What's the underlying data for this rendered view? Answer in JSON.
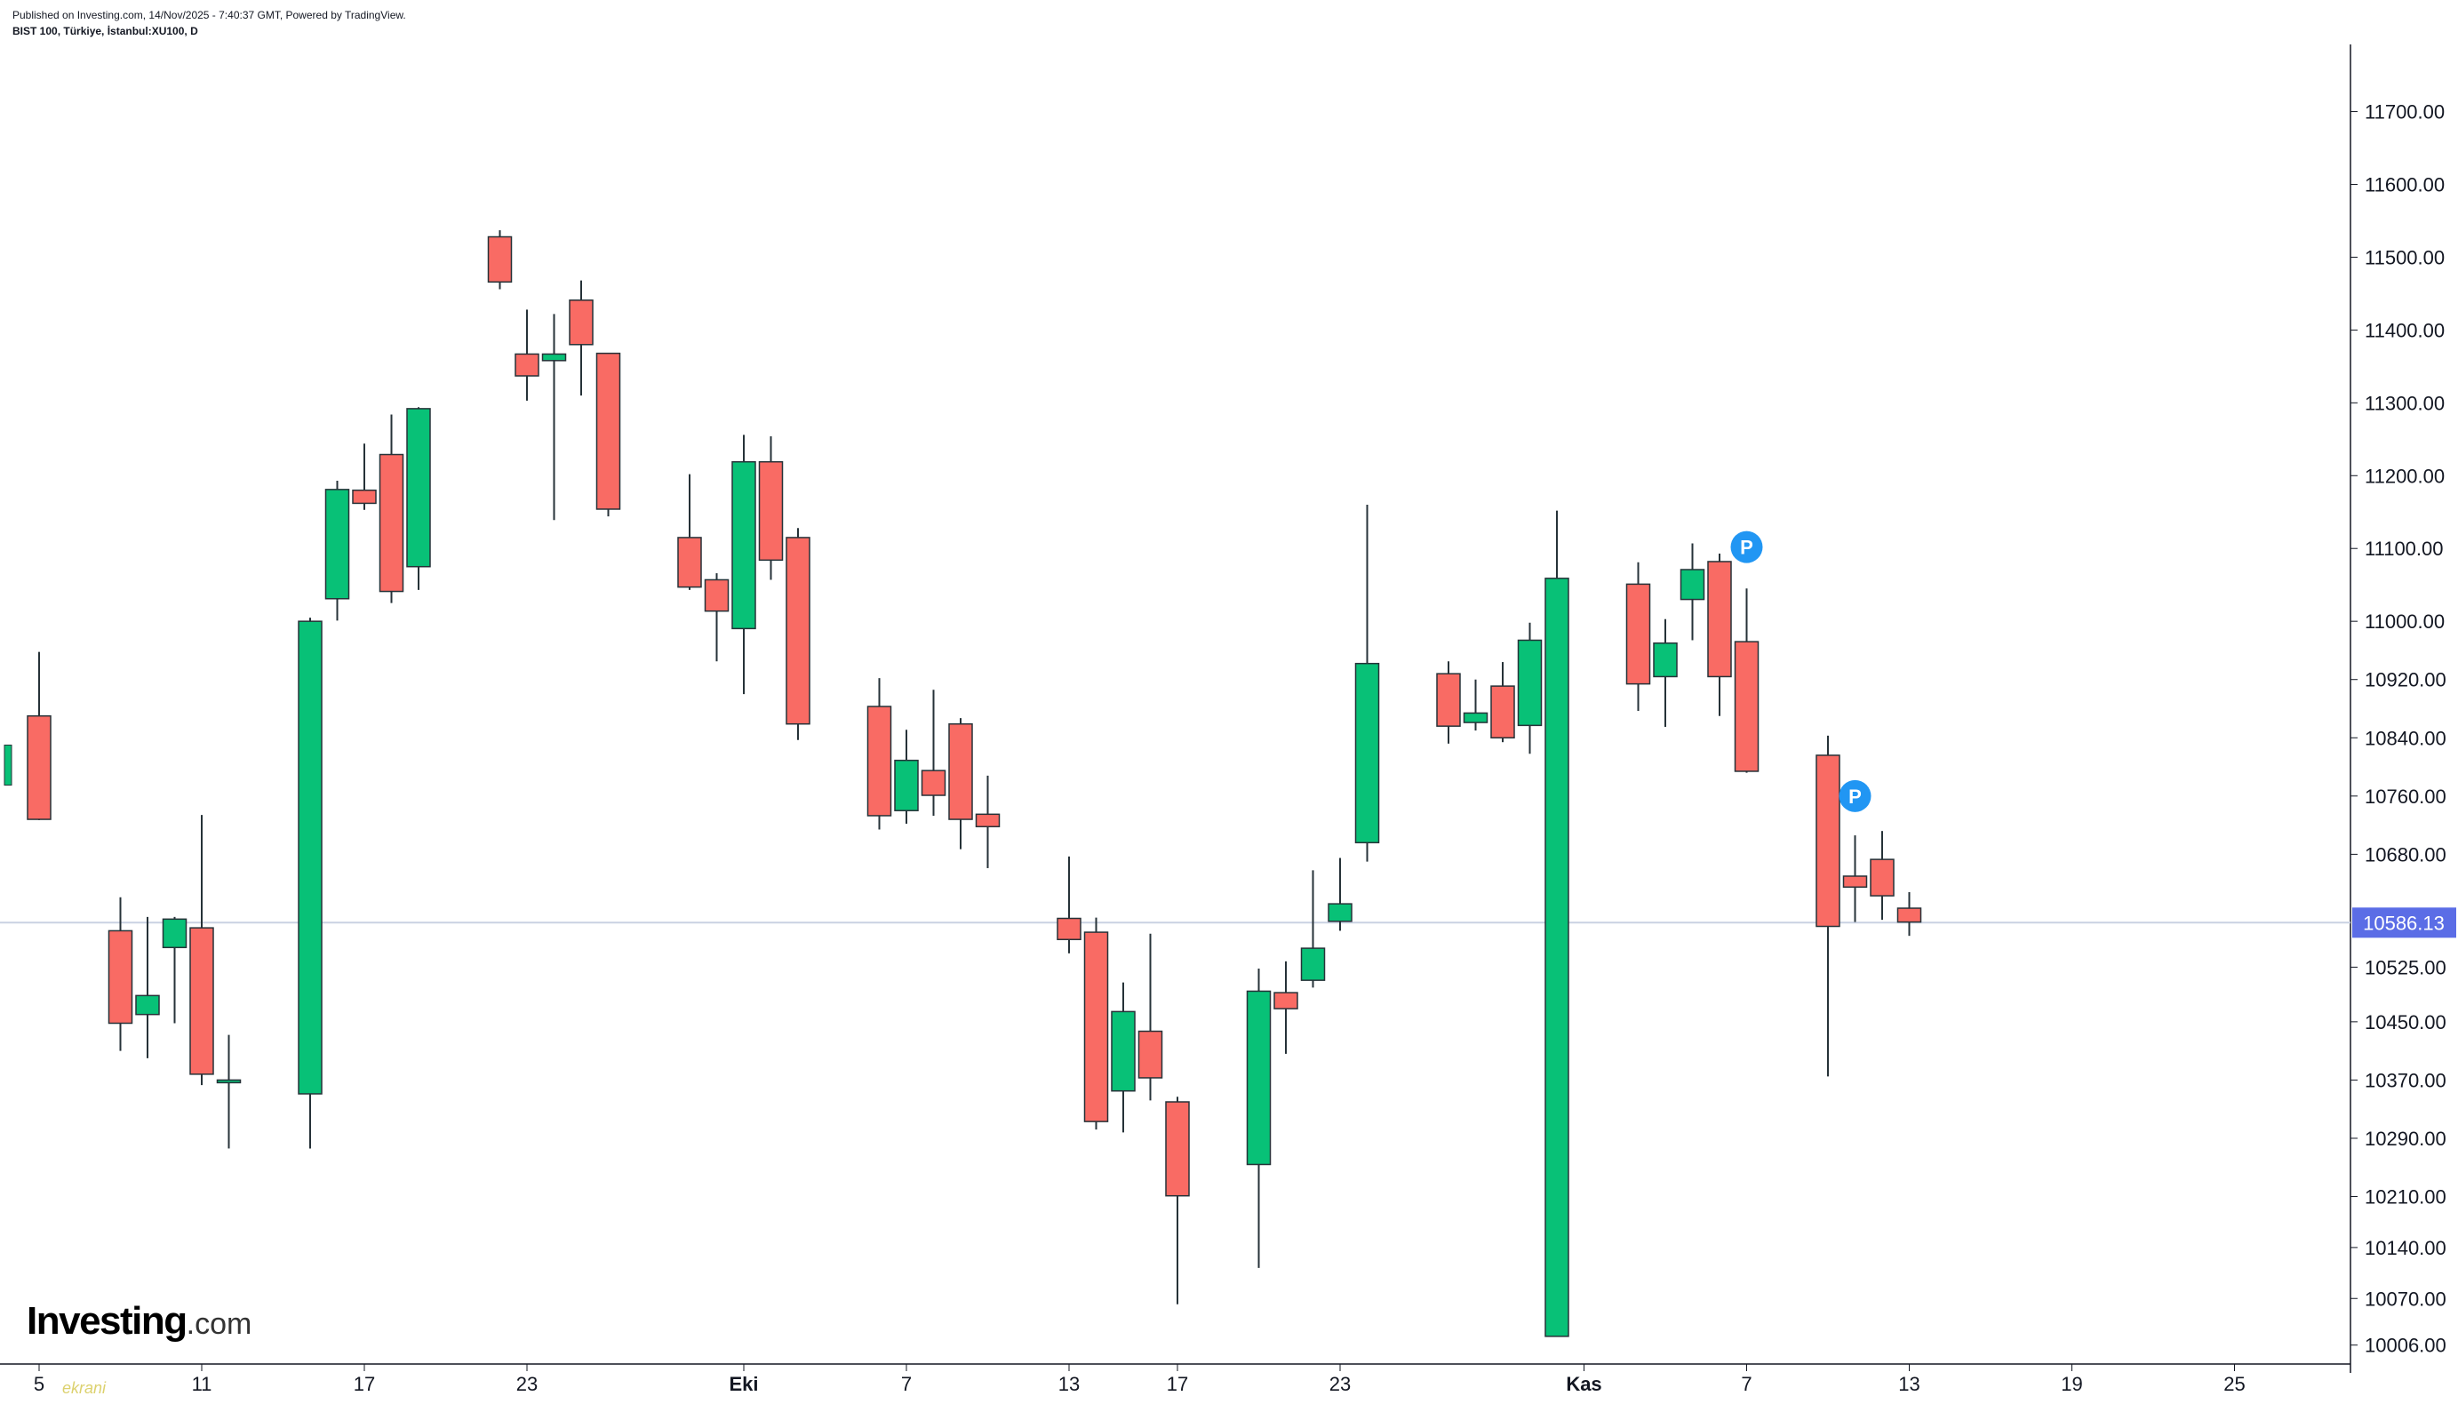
{
  "header": {
    "published": "Published on Investing.com, 14/Nov/2025 - 7:40:37 GMT, Powered by TradingView.",
    "symbol": "BIST 100, Türkiye, İstanbul:XU100, D"
  },
  "logo": {
    "brand": "Investing",
    "suffix": ".com"
  },
  "watermark": "ekrani",
  "colors": {
    "up": "#08c177",
    "down": "#f96b64",
    "wick": "#263238",
    "axis": "#131722",
    "price_line": "#c9d1e2",
    "price_badge": "#5b6de6",
    "marker": "#2196f3"
  },
  "chart_data": {
    "type": "candlestick",
    "ylim": [
      9980,
      11780
    ],
    "yticks": [
      11700,
      11600,
      11500,
      11400,
      11300,
      11200,
      11100,
      11000,
      10920,
      10840,
      10760,
      10680,
      10525,
      10450,
      10370,
      10290,
      10210,
      10140,
      10070,
      10006
    ],
    "ytick_labels": [
      "11700.00",
      "11600.00",
      "11500.00",
      "11400.00",
      "11300.00",
      "11200.00",
      "11100.00",
      "11000.00",
      "10920.00",
      "10840.00",
      "10760.00",
      "10680.00",
      "10525.00",
      "10450.00",
      "10370.00",
      "10290.00",
      "10210.00",
      "10140.00",
      "10070.00",
      "10006.00"
    ],
    "xticks": [
      {
        "label": "5",
        "bold": false,
        "at": "2025-09-05"
      },
      {
        "label": "11",
        "bold": false,
        "at": "2025-09-11"
      },
      {
        "label": "17",
        "bold": false,
        "at": "2025-09-17"
      },
      {
        "label": "23",
        "bold": false,
        "at": "2025-09-23"
      },
      {
        "label": "Eki",
        "bold": true,
        "at": "2025-10-01"
      },
      {
        "label": "7",
        "bold": false,
        "at": "2025-10-07"
      },
      {
        "label": "13",
        "bold": false,
        "at": "2025-10-13"
      },
      {
        "label": "17",
        "bold": false,
        "at": "2025-10-17"
      },
      {
        "label": "23",
        "bold": false,
        "at": "2025-10-23"
      },
      {
        "label": "Kas",
        "bold": true,
        "at": "2025-11-01"
      },
      {
        "label": "7",
        "bold": false,
        "at": "2025-11-07"
      },
      {
        "label": "13",
        "bold": false,
        "at": "2025-11-13"
      },
      {
        "label": "19",
        "bold": false,
        "at": "2025-11-19"
      },
      {
        "label": "25",
        "bold": false,
        "at": "2025-11-25"
      }
    ],
    "candles": [
      {
        "date": "2025-09-05",
        "open": 10870,
        "high": 10958,
        "low": 10727,
        "close": 10728
      },
      {
        "date": "2025-09-08",
        "open": 10575,
        "high": 10621,
        "low": 10410,
        "close": 10448
      },
      {
        "date": "2025-09-09",
        "open": 10460,
        "high": 10594,
        "low": 10400,
        "close": 10486
      },
      {
        "date": "2025-09-10",
        "open": 10552,
        "high": 10594,
        "low": 10448,
        "close": 10591
      },
      {
        "date": "2025-09-11",
        "open": 10579,
        "high": 10734,
        "low": 10363,
        "close": 10378
      },
      {
        "date": "2025-09-12",
        "open": 10370,
        "high": 10432,
        "low": 10276,
        "close": 10370
      },
      {
        "date": "2025-09-15",
        "open": 10351,
        "high": 11005,
        "low": 10276,
        "close": 11000
      },
      {
        "date": "2025-09-16",
        "open": 11031,
        "high": 11193,
        "low": 11001,
        "close": 11181
      },
      {
        "date": "2025-09-17",
        "open": 11180,
        "high": 11244,
        "low": 11153,
        "close": 11162
      },
      {
        "date": "2025-09-18",
        "open": 11229,
        "high": 11284,
        "low": 11025,
        "close": 11041
      },
      {
        "date": "2025-09-19",
        "open": 11075,
        "high": 11294,
        "low": 11043,
        "close": 11292
      },
      {
        "date": "2025-09-22",
        "open": 11528,
        "high": 11537,
        "low": 11456,
        "close": 11466
      },
      {
        "date": "2025-09-23",
        "open": 11367,
        "high": 11428,
        "low": 11303,
        "close": 11337
      },
      {
        "date": "2025-09-24",
        "open": 11358,
        "high": 11422,
        "low": 11139,
        "close": 11367
      },
      {
        "date": "2025-09-25",
        "open": 11441,
        "high": 11468,
        "low": 11310,
        "close": 11380
      },
      {
        "date": "2025-09-26",
        "open": 11368,
        "high": 11368,
        "low": 11144,
        "close": 11154
      },
      {
        "date": "2025-09-29",
        "open": 11115,
        "high": 11202,
        "low": 11043,
        "close": 11047
      },
      {
        "date": "2025-09-30",
        "open": 11057,
        "high": 11066,
        "low": 10945,
        "close": 11014
      },
      {
        "date": "2025-10-01",
        "open": 10990,
        "high": 11256,
        "low": 10900,
        "close": 11219
      },
      {
        "date": "2025-10-02",
        "open": 11219,
        "high": 11254,
        "low": 11057,
        "close": 11084
      },
      {
        "date": "2025-10-03",
        "open": 11115,
        "high": 11128,
        "low": 10837,
        "close": 10859
      },
      {
        "date": "2025-10-06",
        "open": 10883,
        "high": 10922,
        "low": 10714,
        "close": 10733
      },
      {
        "date": "2025-10-07",
        "open": 10740,
        "high": 10851,
        "low": 10722,
        "close": 10809
      },
      {
        "date": "2025-10-08",
        "open": 10795,
        "high": 10906,
        "low": 10733,
        "close": 10761
      },
      {
        "date": "2025-10-09",
        "open": 10859,
        "high": 10867,
        "low": 10687,
        "close": 10728
      },
      {
        "date": "2025-10-10",
        "open": 10735,
        "high": 10788,
        "low": 10661,
        "close": 10718
      },
      {
        "date": "2025-10-13",
        "open": 10592,
        "high": 10677,
        "low": 10544,
        "close": 10563
      },
      {
        "date": "2025-10-14",
        "open": 10573,
        "high": 10593,
        "low": 10302,
        "close": 10313
      },
      {
        "date": "2025-10-15",
        "open": 10355,
        "high": 10504,
        "low": 10298,
        "close": 10464
      },
      {
        "date": "2025-10-16",
        "open": 10437,
        "high": 10571,
        "low": 10342,
        "close": 10373
      },
      {
        "date": "2025-10-17",
        "open": 10340,
        "high": 10347,
        "low": 10062,
        "close": 10211
      },
      {
        "date": "2025-10-20",
        "open": 10254,
        "high": 10523,
        "low": 10112,
        "close": 10492
      },
      {
        "date": "2025-10-21",
        "open": 10490,
        "high": 10533,
        "low": 10406,
        "close": 10468
      },
      {
        "date": "2025-10-22",
        "open": 10507,
        "high": 10658,
        "low": 10497,
        "close": 10551
      },
      {
        "date": "2025-10-23",
        "open": 10588,
        "high": 10675,
        "low": 10575,
        "close": 10612
      },
      {
        "date": "2025-10-24",
        "open": 10696,
        "high": 11160,
        "low": 10670,
        "close": 10942
      },
      {
        "date": "2025-10-27",
        "open": 10928,
        "high": 10945,
        "low": 10832,
        "close": 10856
      },
      {
        "date": "2025-10-28",
        "open": 10861,
        "high": 10920,
        "low": 10850,
        "close": 10874
      },
      {
        "date": "2025-10-29",
        "open": 10911,
        "high": 10944,
        "low": 10834,
        "close": 10840
      },
      {
        "date": "2025-10-30",
        "open": 10857,
        "high": 10998,
        "low": 10818,
        "close": 10974
      },
      {
        "date": "2025-10-31",
        "open": 10018,
        "high": 11152,
        "low": 10018,
        "close": 11059
      },
      {
        "date": "2025-11-03",
        "open": 11051,
        "high": 11081,
        "low": 10877,
        "close": 10914
      },
      {
        "date": "2025-11-04",
        "open": 10924,
        "high": 11003,
        "low": 10855,
        "close": 10970
      },
      {
        "date": "2025-11-05",
        "open": 11030,
        "high": 11107,
        "low": 10974,
        "close": 11071
      },
      {
        "date": "2025-11-06",
        "open": 11082,
        "high": 11093,
        "low": 10870,
        "close": 10924
      },
      {
        "date": "2025-11-07",
        "open": 10972,
        "high": 11045,
        "low": 10792,
        "close": 10794
      },
      {
        "date": "2025-11-10",
        "open": 10816,
        "high": 10843,
        "low": 10375,
        "close": 10581
      },
      {
        "date": "2025-11-11",
        "open": 10650,
        "high": 10706,
        "low": 10587,
        "close": 10635
      },
      {
        "date": "2025-11-12",
        "open": 10673,
        "high": 10712,
        "low": 10590,
        "close": 10623
      },
      {
        "date": "2025-11-13",
        "open": 10606,
        "high": 10628,
        "low": 10568,
        "close": 10587
      }
    ],
    "last_price": 10586.13,
    "last_price_label": "10586.13",
    "markers": [
      {
        "label": "P",
        "date": "2025-11-07",
        "value": 11102
      },
      {
        "label": "P",
        "date": "2025-11-11",
        "value": 10760
      }
    ],
    "left_partial_candle": {
      "open": 10775,
      "high": 10836,
      "low": 10766,
      "close": 10830
    }
  }
}
